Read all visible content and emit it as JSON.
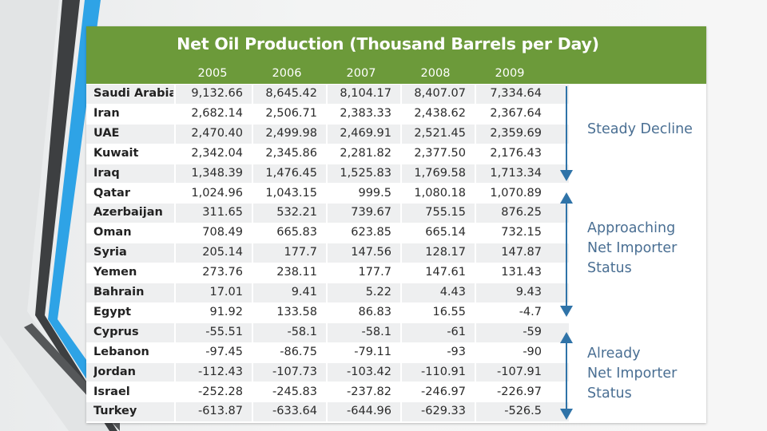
{
  "title": "Net Oil Production (Thousand Barrels per Day)",
  "years": [
    "2005",
    "2006",
    "2007",
    "2008",
    "2009"
  ],
  "rows": [
    {
      "country": "Saudi Arabia",
      "values": [
        "9,132.66",
        "8,645.42",
        "8,104.17",
        "8,407.07",
        "7,334.64"
      ]
    },
    {
      "country": "Iran",
      "values": [
        "2,682.14",
        "2,506.71",
        "2,383.33",
        "2,438.62",
        "2,367.64"
      ]
    },
    {
      "country": "UAE",
      "values": [
        "2,470.40",
        "2,499.98",
        "2,469.91",
        "2,521.45",
        "2,359.69"
      ]
    },
    {
      "country": "Kuwait",
      "values": [
        "2,342.04",
        "2,345.86",
        "2,281.82",
        "2,377.50",
        "2,176.43"
      ]
    },
    {
      "country": "Iraq",
      "values": [
        "1,348.39",
        "1,476.45",
        "1,525.83",
        "1,769.58",
        "1,713.34"
      ]
    },
    {
      "country": "Qatar",
      "values": [
        "1,024.96",
        "1,043.15",
        "999.5",
        "1,080.18",
        "1,070.89"
      ]
    },
    {
      "country": "Azerbaijan",
      "values": [
        "311.65",
        "532.21",
        "739.67",
        "755.15",
        "876.25"
      ]
    },
    {
      "country": "Oman",
      "values": [
        "708.49",
        "665.83",
        "623.85",
        "665.14",
        "732.15"
      ]
    },
    {
      "country": "Syria",
      "values": [
        "205.14",
        "177.7",
        "147.56",
        "128.17",
        "147.87"
      ]
    },
    {
      "country": "Yemen",
      "values": [
        "273.76",
        "238.11",
        "177.7",
        "147.61",
        "131.43"
      ]
    },
    {
      "country": "Bahrain",
      "values": [
        "17.01",
        "9.41",
        "5.22",
        "4.43",
        "9.43"
      ]
    },
    {
      "country": "Egypt",
      "values": [
        "91.92",
        "133.58",
        "86.83",
        "16.55",
        "-4.7"
      ]
    },
    {
      "country": "Cyprus",
      "values": [
        "-55.51",
        "-58.1",
        "-58.1",
        "-61",
        "-59"
      ]
    },
    {
      "country": "Lebanon",
      "values": [
        "-97.45",
        "-86.75",
        "-79.11",
        "-93",
        "-90"
      ]
    },
    {
      "country": "Jordan",
      "values": [
        "-112.43",
        "-107.73",
        "-103.42",
        "-110.91",
        "-107.91"
      ]
    },
    {
      "country": "Israel",
      "values": [
        "-252.28",
        "-245.83",
        "-237.82",
        "-246.97",
        "-226.97"
      ]
    },
    {
      "country": "Turkey",
      "values": [
        "-613.87",
        "-633.64",
        "-644.96",
        "-629.33",
        "-526.5"
      ]
    }
  ],
  "annotations": {
    "steady_decline": "Steady Decline",
    "approaching": "Approaching\nNet Importer\nStatus",
    "already": "Already\nNet Importer\nStatus"
  },
  "colors": {
    "header_green": "#6c9a3a",
    "label_blue": "#4a6f93",
    "arrow_blue": "#2f73a8",
    "accent_blue": "#2ea3e6"
  }
}
